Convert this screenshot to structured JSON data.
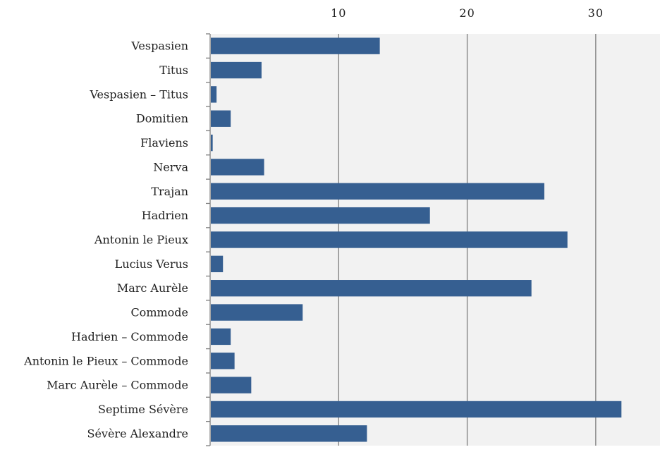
{
  "chart_data": {
    "type": "bar",
    "orientation": "horizontal",
    "title": "",
    "xlabel": "",
    "ylabel": "",
    "xlim": [
      0,
      35
    ],
    "x_ticks": [
      10,
      20,
      30
    ],
    "x_tick_labels": [
      "10",
      "20",
      "30"
    ],
    "x_axis_position": "top",
    "grid": true,
    "legend": "none",
    "categories": [
      "Vespasien",
      "Titus",
      "Vespasien – Titus",
      "Domitien",
      "Flaviens",
      "Nerva",
      "Trajan",
      "Hadrien",
      "Antonin le Pieux",
      "Lucius Verus",
      "Marc Aurèle",
      "Commode",
      "Hadrien – Commode",
      "Antonin le Pieux – Commode",
      "Marc Aurèle – Commode",
      "Septime Sévère",
      "Sévère Alexandre"
    ],
    "values": [
      13.2,
      4.0,
      0.5,
      1.6,
      0.2,
      4.2,
      26.0,
      17.1,
      27.8,
      1.0,
      25.0,
      7.2,
      1.6,
      1.9,
      3.2,
      32.0,
      12.2
    ]
  },
  "colors": {
    "bar": "#365f91",
    "plot_background": "#f2f2f2",
    "gridline": "#7f7f7f",
    "axis": "#7f7f7f"
  }
}
